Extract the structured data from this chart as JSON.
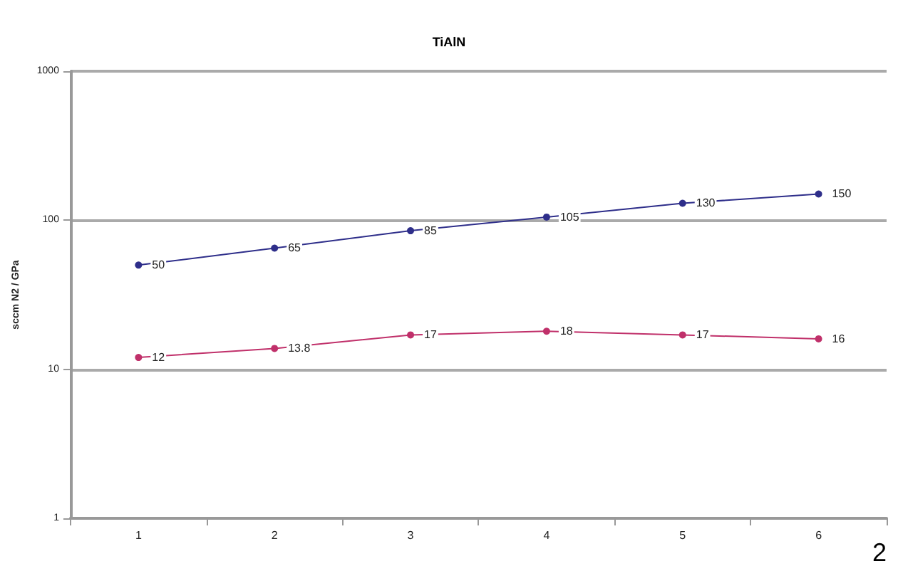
{
  "chart_data": {
    "type": "line",
    "title": "TiAlN",
    "ylabel": "sccm N2 / GPa",
    "categories": [
      "1",
      "2",
      "3",
      "4",
      "5",
      "6"
    ],
    "series": [
      {
        "color": "#2e2e8a",
        "values": [
          50,
          65,
          85,
          105,
          130,
          150
        ]
      },
      {
        "color": "#c0306a",
        "values": [
          12,
          13.8,
          17,
          18,
          17,
          16
        ]
      }
    ],
    "log": "y",
    "ylim": [
      1,
      1000
    ],
    "yticks": [
      1,
      10,
      100,
      1000
    ],
    "grid": "y",
    "marker": "circle",
    "line_style": "solid",
    "data_labels": true,
    "annotations": [
      "2"
    ]
  }
}
